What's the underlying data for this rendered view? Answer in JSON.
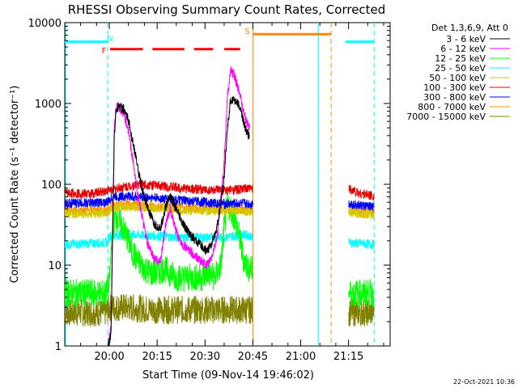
{
  "chart_data": {
    "type": "line",
    "title": "RHESSI Observing Summary Count Rates, Corrected",
    "xlabel": "Start Time (09-Nov-14 19:46:02)",
    "ylabel": "Corrected Count Rate (s⁻¹ detector⁻¹)",
    "y_scale": "log",
    "ylim": [
      1,
      10000
    ],
    "xlim_minutes": [
      0,
      102
    ],
    "x_tick_labels": [
      {
        "label": "20:00",
        "minute": 13.97
      },
      {
        "label": "20:15",
        "minute": 28.97
      },
      {
        "label": "20:30",
        "minute": 43.97
      },
      {
        "label": "20:45",
        "minute": 58.97
      },
      {
        "label": "21:00",
        "minute": 73.97
      },
      {
        "label": "21:15",
        "minute": 88.97
      }
    ],
    "y_tick_labels": [
      {
        "label": "1",
        "value": 1
      },
      {
        "label": "10",
        "value": 10
      },
      {
        "label": "100",
        "value": 100
      },
      {
        "label": "1000",
        "value": 1000
      },
      {
        "label": "10000",
        "value": 10000
      }
    ],
    "legend_header": "Det 1,3,6,9, Att 0",
    "legend_placement": "right",
    "series": [
      {
        "name": "3 - 6 keV",
        "color": "#000000",
        "points": [
          [
            13.5,
            1
          ],
          [
            14.5,
            1.4
          ],
          [
            15.5,
            350
          ],
          [
            16,
            800
          ],
          [
            17,
            950
          ],
          [
            18.5,
            850
          ],
          [
            20,
            600
          ],
          [
            21.5,
            320
          ],
          [
            23,
            150
          ],
          [
            24.5,
            80
          ],
          [
            26,
            50
          ],
          [
            28,
            32
          ],
          [
            30,
            28
          ],
          [
            31.5,
            50
          ],
          [
            33,
            75
          ],
          [
            35,
            48
          ],
          [
            37,
            32
          ],
          [
            39,
            25
          ],
          [
            41,
            20
          ],
          [
            43,
            17
          ],
          [
            44.5,
            15
          ],
          [
            46,
            18
          ],
          [
            48,
            32
          ],
          [
            50,
            120
          ],
          [
            51,
            500
          ],
          [
            52,
            1100
          ],
          [
            53,
            1150
          ],
          [
            54,
            1000
          ],
          [
            55,
            900
          ],
          [
            56,
            600
          ],
          [
            57,
            450
          ],
          [
            58,
            380
          ]
        ]
      },
      {
        "name": "6 - 12 keV",
        "color": "#ff00ff",
        "points": [
          [
            13.5,
            1
          ],
          [
            14.5,
            1.6
          ],
          [
            15.5,
            450
          ],
          [
            16,
            900
          ],
          [
            17,
            880
          ],
          [
            18.5,
            750
          ],
          [
            20,
            450
          ],
          [
            21.5,
            180
          ],
          [
            23,
            70
          ],
          [
            24.5,
            35
          ],
          [
            26,
            18
          ],
          [
            28,
            12
          ],
          [
            30,
            11
          ],
          [
            31.5,
            30
          ],
          [
            33,
            50
          ],
          [
            35,
            25
          ],
          [
            37,
            18
          ],
          [
            39,
            15
          ],
          [
            41,
            13
          ],
          [
            43,
            11
          ],
          [
            44.5,
            10
          ],
          [
            46,
            12
          ],
          [
            48,
            25
          ],
          [
            50,
            200
          ],
          [
            51,
            1200
          ],
          [
            52,
            2600
          ],
          [
            53,
            2300
          ],
          [
            54,
            1700
          ],
          [
            55,
            1300
          ],
          [
            56,
            800
          ],
          [
            57,
            600
          ],
          [
            58,
            500
          ]
        ]
      },
      {
        "name": "12 - 25 keV",
        "color": "#00ff00",
        "points": [
          [
            0,
            4.5
          ],
          [
            8,
            4.5
          ],
          [
            13,
            4.5
          ],
          [
            14,
            6
          ],
          [
            15,
            30
          ],
          [
            16,
            40
          ],
          [
            17,
            35
          ],
          [
            19,
            25
          ],
          [
            21,
            15
          ],
          [
            23,
            11
          ],
          [
            25,
            9
          ],
          [
            27,
            8
          ],
          [
            29,
            8
          ],
          [
            31,
            9
          ],
          [
            33,
            8
          ],
          [
            35,
            7
          ],
          [
            37,
            7
          ],
          [
            39,
            7
          ],
          [
            41,
            7
          ],
          [
            43,
            7
          ],
          [
            45,
            8
          ],
          [
            47,
            7
          ],
          [
            49,
            10
          ],
          [
            50,
            30
          ],
          [
            51,
            55
          ],
          [
            52,
            50
          ],
          [
            53,
            40
          ],
          [
            54,
            30
          ],
          [
            55,
            20
          ],
          [
            56,
            12
          ],
          [
            57,
            10
          ],
          [
            58,
            9
          ],
          [
            89,
            4.5
          ],
          [
            91,
            4.5
          ],
          [
            96,
            4.5
          ],
          [
            97,
            4.5
          ]
        ]
      },
      {
        "name": "25 - 50 keV",
        "color": "#00ffff",
        "points": [
          [
            0,
            18
          ],
          [
            13.5,
            19
          ],
          [
            14,
            23
          ],
          [
            20,
            24
          ],
          [
            28,
            23
          ],
          [
            36,
            22
          ],
          [
            44,
            22
          ],
          [
            50,
            22
          ],
          [
            56,
            24
          ],
          [
            58,
            23
          ],
          [
            89,
            19
          ],
          [
            97,
            18
          ]
        ]
      },
      {
        "name": "50 - 100 keV",
        "color": "#d4c800",
        "points": [
          [
            0,
            43
          ],
          [
            13.5,
            44
          ],
          [
            15,
            52
          ],
          [
            20,
            53
          ],
          [
            28,
            51
          ],
          [
            36,
            48
          ],
          [
            44,
            47
          ],
          [
            50,
            47
          ],
          [
            56,
            47
          ],
          [
            58,
            46
          ],
          [
            89,
            45
          ],
          [
            97,
            42
          ]
        ]
      },
      {
        "name": "100 - 300 keV",
        "color": "#e80000",
        "points": [
          [
            0,
            78
          ],
          [
            8,
            76
          ],
          [
            13.5,
            84
          ],
          [
            18,
            92
          ],
          [
            24,
            100
          ],
          [
            30,
            96
          ],
          [
            36,
            90
          ],
          [
            44,
            85
          ],
          [
            50,
            84
          ],
          [
            56,
            87
          ],
          [
            58,
            88
          ],
          [
            89,
            90
          ],
          [
            92,
            78
          ],
          [
            97,
            72
          ]
        ]
      },
      {
        "name": "300 - 800 keV",
        "color": "#0000ff",
        "points": [
          [
            0,
            58
          ],
          [
            13.5,
            60
          ],
          [
            15,
            70
          ],
          [
            20,
            71
          ],
          [
            28,
            68
          ],
          [
            36,
            63
          ],
          [
            44,
            60
          ],
          [
            50,
            57
          ],
          [
            56,
            58
          ],
          [
            58,
            57
          ],
          [
            89,
            58
          ],
          [
            92,
            55
          ],
          [
            97,
            52
          ]
        ]
      },
      {
        "name": "800 - 7000 keV",
        "color": "#ff8c00",
        "points": [
          [
            0,
            47
          ],
          [
            13.5,
            48
          ],
          [
            15,
            55
          ],
          [
            20,
            56
          ],
          [
            28,
            54
          ],
          [
            36,
            52
          ],
          [
            44,
            50
          ],
          [
            50,
            49
          ],
          [
            56,
            50
          ],
          [
            58,
            48
          ],
          [
            89,
            48
          ],
          [
            92,
            46
          ],
          [
            97,
            45
          ]
        ]
      },
      {
        "name": "7000 - 15000 keV",
        "color": "#808000",
        "points": [
          [
            0,
            2.6
          ],
          [
            8,
            2.6
          ],
          [
            13,
            2.6
          ],
          [
            14,
            3
          ],
          [
            20,
            3
          ],
          [
            28,
            2.8
          ],
          [
            36,
            2.8
          ],
          [
            44,
            2.8
          ],
          [
            50,
            2.8
          ],
          [
            56,
            2.8
          ],
          [
            58,
            2.8
          ],
          [
            89,
            2.6
          ],
          [
            97,
            2.6
          ]
        ]
      }
    ],
    "flag_bars": [
      {
        "label": "N",
        "color": "#00ffff",
        "level": 5800,
        "segments": [
          [
            0,
            13.5
          ],
          [
            88,
            97
          ]
        ],
        "label_minute": 14.2
      },
      {
        "label": "F",
        "color": "#ff0000",
        "level": 4700,
        "segments": [
          [
            14.2,
            24.5
          ],
          [
            27.5,
            37.5
          ],
          [
            40.5,
            46.5
          ],
          [
            50,
            55
          ]
        ],
        "label_minute": 12.3
      },
      {
        "label": "S",
        "color": "#ff8c00",
        "level": 7200,
        "segments": [
          [
            59,
            83.5
          ]
        ],
        "label_minute": 57.2
      }
    ],
    "vertical_markers": [
      {
        "minute": 13.5,
        "color": "#00ffff",
        "style": "dashed"
      },
      {
        "minute": 59,
        "color": "#ff8c00",
        "style": "solid"
      },
      {
        "minute": 79.5,
        "color": "#00ffff",
        "style": "solid"
      },
      {
        "minute": 83.5,
        "color": "#ff8c00",
        "style": "dashed"
      },
      {
        "minute": 97,
        "color": "#00ffff",
        "style": "dashed"
      },
      {
        "minute": 0.3,
        "color": "#00ffff",
        "style": "solid"
      }
    ],
    "data_gaps": [
      [
        59,
        89
      ]
    ]
  },
  "footer": {
    "timestamp": "22-Oct-2021 10:36"
  }
}
